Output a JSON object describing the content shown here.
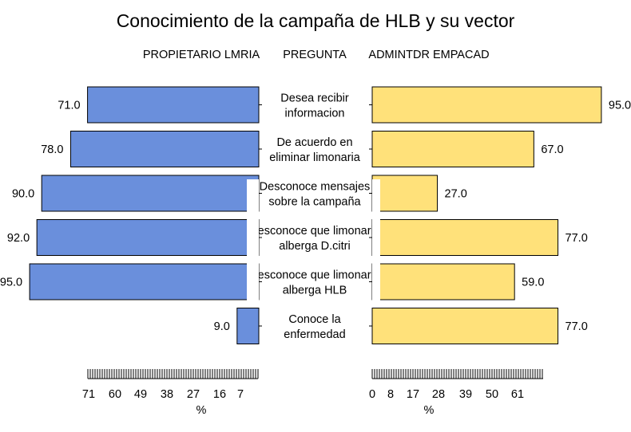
{
  "chart_data": {
    "type": "bar",
    "title": "Conocimiento de la campaña de HLB y su vector",
    "header": {
      "left": "PROPIETARIO LMRIA",
      "center": "PREGUNTA",
      "right": "ADMINTDR EMPACAD"
    },
    "categories": [
      [
        "Desea recibir",
        "informacion"
      ],
      [
        "De acuerdo en",
        "eliminar limonaria"
      ],
      [
        "Desconoce mensajes",
        "sobre la campaña"
      ],
      [
        "Desconoce que limonaria",
        "alberga D.citri"
      ],
      [
        "Desconoce que limonaria",
        "alberga HLB"
      ],
      [
        "Conoce la",
        "enfermedad"
      ]
    ],
    "series": [
      {
        "name": "PROPIETARIO LMRIA",
        "values": [
          71.0,
          78.0,
          90.0,
          92.0,
          95.0,
          9.0
        ],
        "color": "#6a8fdc"
      },
      {
        "name": "ADMINTDR EMPACAD",
        "values": [
          95.0,
          67.0,
          27.0,
          77.0,
          59.0,
          77.0
        ],
        "color": "#ffe17a"
      }
    ],
    "left_axis": {
      "tick_labels": [
        "71",
        "60",
        "49",
        "38",
        "27",
        "16",
        "7"
      ],
      "label": "%",
      "direction": "reversed",
      "range": [
        0,
        95
      ]
    },
    "right_axis": {
      "tick_labels": [
        "0",
        "8",
        "17",
        "28",
        "39",
        "50",
        "61"
      ],
      "label": "%",
      "range": [
        0,
        95
      ]
    }
  }
}
